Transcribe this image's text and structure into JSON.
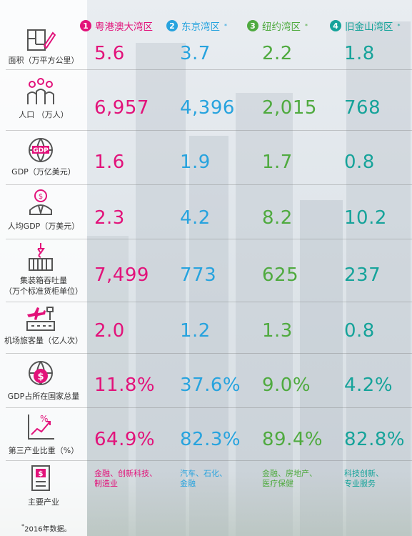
{
  "regions": [
    {
      "num": "1",
      "name": "粤港澳大湾区",
      "mark": ""
    },
    {
      "num": "2",
      "name": "东京湾区",
      "mark": "*"
    },
    {
      "num": "3",
      "name": "纽约湾区",
      "mark": "*"
    },
    {
      "num": "4",
      "name": "旧金山湾区",
      "mark": "*"
    }
  ],
  "rows": [
    {
      "label": "面积（万平方公里）",
      "icon": "floorplan-pencil-icon",
      "values": [
        "5.6",
        "3.7",
        "2.2",
        "1.8"
      ]
    },
    {
      "label": "人口 （万人）",
      "icon": "people-group-icon",
      "values": [
        "6,957",
        "4,396",
        "2,015",
        "768"
      ]
    },
    {
      "label": "GDP（万亿美元）",
      "icon": "gdp-globe-icon",
      "icon_text": "GDP",
      "values": [
        "1.6",
        "1.9",
        "1.7",
        "0.8"
      ]
    },
    {
      "label": "人均GDP（万美元）",
      "icon": "person-dollar-icon",
      "icon_text": "$",
      "values": [
        "2.3",
        "4.2",
        "8.2",
        "10.2"
      ]
    },
    {
      "label1": "集装箱吞吐量",
      "label2": "（万个标准货柜单位）",
      "icon": "container-crane-icon",
      "values": [
        "7,499",
        "773",
        "625",
        "237"
      ]
    },
    {
      "label": "机场旅客量（亿人次）",
      "icon": "airport-plane-icon",
      "values": [
        "2.0",
        "1.2",
        "1.3",
        "0.8"
      ]
    },
    {
      "label": "GDP占所在国家总量",
      "icon": "network-dollar-icon",
      "icon_text": "$",
      "values": [
        "11.8%",
        "37.6%",
        "9.0%",
        "4.2%"
      ]
    },
    {
      "label": "第三产业比重（%）",
      "icon": "growth-chart-icon",
      "icon_text": "%",
      "values": [
        "64.9%",
        "82.3%",
        "89.4%",
        "82.8%"
      ]
    }
  ],
  "industries": {
    "label": "主要产业",
    "icon": "document-dollar-icon",
    "icon_text": "$",
    "r1": [
      "金融、创新科技、",
      "制造业"
    ],
    "r2": [
      "汽车、石化、",
      "金融"
    ],
    "r3": [
      "金融、房地产、",
      "医疗保健"
    ],
    "r4": [
      "科技创新、",
      "专业服务"
    ]
  },
  "footnote": {
    "mark": "*",
    "text": "2016年数据。"
  },
  "colors": {
    "r1": "#e2127a",
    "r2": "#27a3de",
    "r3": "#4faa3f",
    "r4": "#16a39a"
  }
}
